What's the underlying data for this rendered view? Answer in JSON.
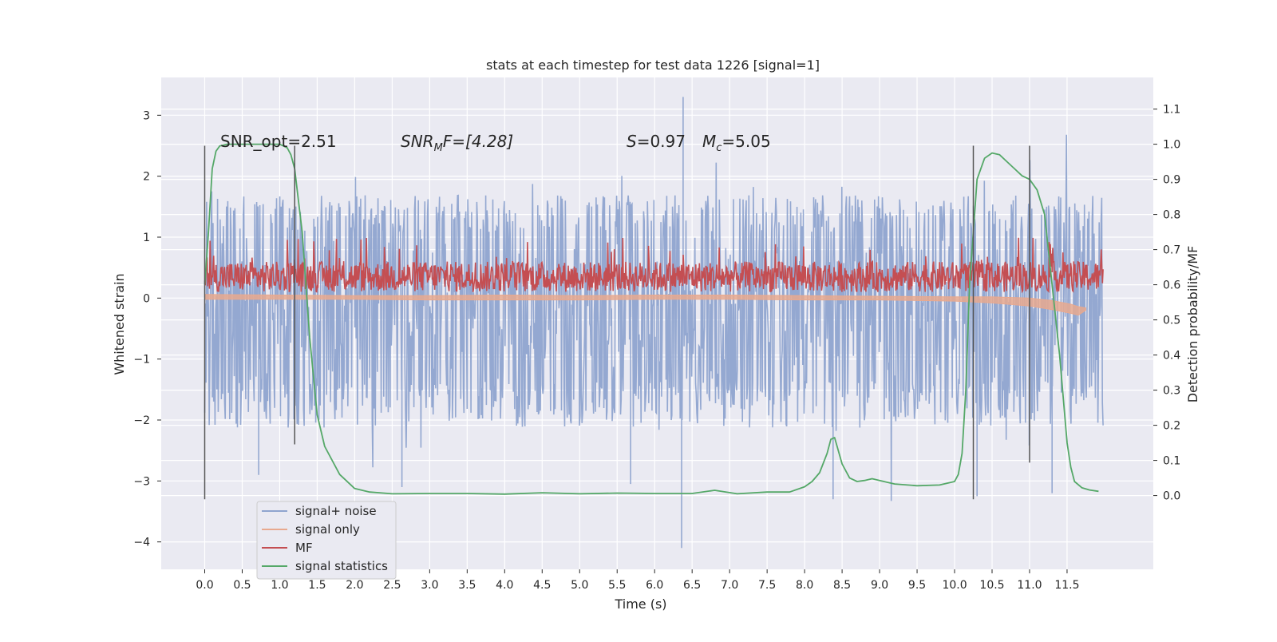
{
  "chart_data": {
    "type": "line",
    "title": "stats at each timestep for test data 1226 [signal=1]",
    "xlabel": "Time (s)",
    "ylabel": "Whitened strain",
    "y2label": "Detection probability/MF",
    "xlim": [
      -0.58,
      12.65
    ],
    "ylim": [
      -4.45,
      3.62
    ],
    "y2lim": [
      -0.21,
      1.19
    ],
    "x_ticks": [
      0.0,
      0.5,
      1.0,
      1.5,
      2.0,
      2.5,
      3.0,
      3.5,
      4.0,
      4.5,
      5.0,
      5.5,
      6.0,
      6.5,
      7.0,
      7.5,
      8.0,
      8.5,
      9.0,
      9.5,
      10.0,
      10.5,
      11.0,
      11.5
    ],
    "x_tick_labels": [
      "0.0",
      "0.5",
      "1.0",
      "1.5",
      "2.0",
      "2.5",
      "3.0",
      "3.5",
      "4.0",
      "4.5",
      "5.0",
      "5.5",
      "6.0",
      "6.5",
      "7.0",
      "7.5",
      "8.0",
      "8.5",
      "9.0",
      "9.5",
      "10.0",
      "10.5",
      "11.0",
      "11.5"
    ],
    "y_ticks": [
      3,
      2,
      1,
      0,
      -1,
      -2,
      -3,
      -4
    ],
    "y_tick_labels": [
      "3",
      "2",
      "1",
      "0",
      "−1",
      "−2",
      "−3",
      "−4"
    ],
    "y2_ticks": [
      1.1,
      1.0,
      0.9,
      0.8,
      0.7,
      0.6,
      0.5,
      0.4,
      0.3,
      0.2,
      0.1,
      0.0
    ],
    "y2_tick_labels": [
      "1.1",
      "1.0",
      "0.9",
      "0.8",
      "0.7",
      "0.6",
      "0.5",
      "0.4",
      "0.3",
      "0.2",
      "0.1",
      "0.0"
    ],
    "grid": true,
    "legend_position": "bottom-left",
    "annotations": {
      "snr_opt": "SNR_opt=2.51",
      "snr_mf_sym": "SNR",
      "snr_mf_sub": "M",
      "snr_mf_rest": "F=[4.28]",
      "s_sym": "S",
      "s_rest": "=0.97",
      "mc_sym": "M",
      "mc_sub": "c",
      "mc_rest": "=5.05"
    },
    "vertical_lines": {
      "color": "#555555",
      "lines": [
        {
          "x": 0.0,
          "y_from": -3.3,
          "y_to": 2.5
        },
        {
          "x": 1.2,
          "y_from": -2.4,
          "y_to": 2.5
        },
        {
          "x": 10.25,
          "y_from": -3.3,
          "y_to": 2.5
        },
        {
          "x": 11.0,
          "y_from": -2.7,
          "y_to": 2.5
        }
      ]
    },
    "series": [
      {
        "name": "signal+ noise",
        "color": "#8fa4cf",
        "axis": "left",
        "style": "noise band",
        "x_range": [
          0.0,
          11.98
        ],
        "typical_range": [
          -1.7,
          1.35
        ],
        "peak_range": [
          -4.1,
          3.3
        ],
        "spikes": [
          {
            "x": 6.36,
            "y": -4.1
          },
          {
            "x": 6.38,
            "y": 3.3
          },
          {
            "x": 0.72,
            "y": -2.9
          },
          {
            "x": 2.63,
            "y": -3.1
          },
          {
            "x": 5.68,
            "y": -3.05
          },
          {
            "x": 8.38,
            "y": -3.3
          },
          {
            "x": 10.3,
            "y": -3.25
          },
          {
            "x": 11.3,
            "y": -3.2
          }
        ]
      },
      {
        "name": "signal only",
        "color": "#e8a98f",
        "axis": "left",
        "x": [
          0.0,
          1.0,
          2.0,
          3.0,
          4.0,
          5.0,
          6.0,
          7.0,
          8.0,
          9.0,
          10.0,
          10.5,
          11.0,
          11.3,
          11.55,
          11.65,
          11.75
        ],
        "y_upper": [
          0.06,
          0.05,
          0.04,
          0.04,
          0.05,
          0.04,
          0.05,
          0.05,
          0.04,
          0.03,
          0.02,
          0.02,
          0.0,
          -0.04,
          -0.1,
          -0.14,
          -0.16
        ],
        "y_lower": [
          -0.02,
          -0.02,
          -0.02,
          -0.03,
          -0.03,
          -0.03,
          -0.02,
          -0.02,
          -0.03,
          -0.03,
          -0.05,
          -0.08,
          -0.13,
          -0.19,
          -0.25,
          -0.28,
          -0.2
        ]
      },
      {
        "name": "MF",
        "color": "#c44e52",
        "axis": "left",
        "style": "noise band",
        "x_range": [
          0.0,
          11.98
        ],
        "typical_range": [
          0.0,
          0.55
        ],
        "peak_range": [
          0.0,
          1.0
        ]
      },
      {
        "name": "signal statistics",
        "color": "#55a868",
        "axis": "right",
        "x": [
          0.0,
          0.05,
          0.1,
          0.15,
          0.2,
          0.3,
          0.5,
          0.8,
          1.0,
          1.1,
          1.15,
          1.2,
          1.3,
          1.4,
          1.5,
          1.6,
          1.8,
          2.0,
          2.2,
          2.5,
          3.0,
          3.5,
          4.0,
          4.5,
          5.0,
          5.5,
          6.0,
          6.5,
          6.8,
          7.1,
          7.5,
          7.8,
          8.0,
          8.1,
          8.2,
          8.3,
          8.35,
          8.4,
          8.5,
          8.6,
          8.7,
          8.8,
          8.9,
          9.0,
          9.2,
          9.5,
          9.8,
          10.0,
          10.05,
          10.1,
          10.15,
          10.2,
          10.3,
          10.4,
          10.5,
          10.6,
          10.7,
          10.8,
          10.9,
          11.0,
          11.1,
          11.2,
          11.3,
          11.4,
          11.5,
          11.55,
          11.6,
          11.7,
          11.8,
          11.92
        ],
        "y": [
          0.6,
          0.75,
          0.93,
          0.98,
          0.995,
          1.0,
          1.0,
          1.0,
          1.0,
          0.99,
          0.97,
          0.93,
          0.75,
          0.45,
          0.23,
          0.14,
          0.06,
          0.02,
          0.01,
          0.005,
          0.006,
          0.006,
          0.004,
          0.008,
          0.005,
          0.007,
          0.006,
          0.006,
          0.015,
          0.005,
          0.01,
          0.01,
          0.025,
          0.04,
          0.065,
          0.12,
          0.16,
          0.165,
          0.09,
          0.05,
          0.04,
          0.043,
          0.048,
          0.043,
          0.033,
          0.028,
          0.03,
          0.04,
          0.06,
          0.12,
          0.3,
          0.6,
          0.9,
          0.96,
          0.975,
          0.97,
          0.95,
          0.93,
          0.91,
          0.9,
          0.87,
          0.8,
          0.6,
          0.4,
          0.15,
          0.08,
          0.04,
          0.022,
          0.016,
          0.012
        ]
      }
    ]
  }
}
